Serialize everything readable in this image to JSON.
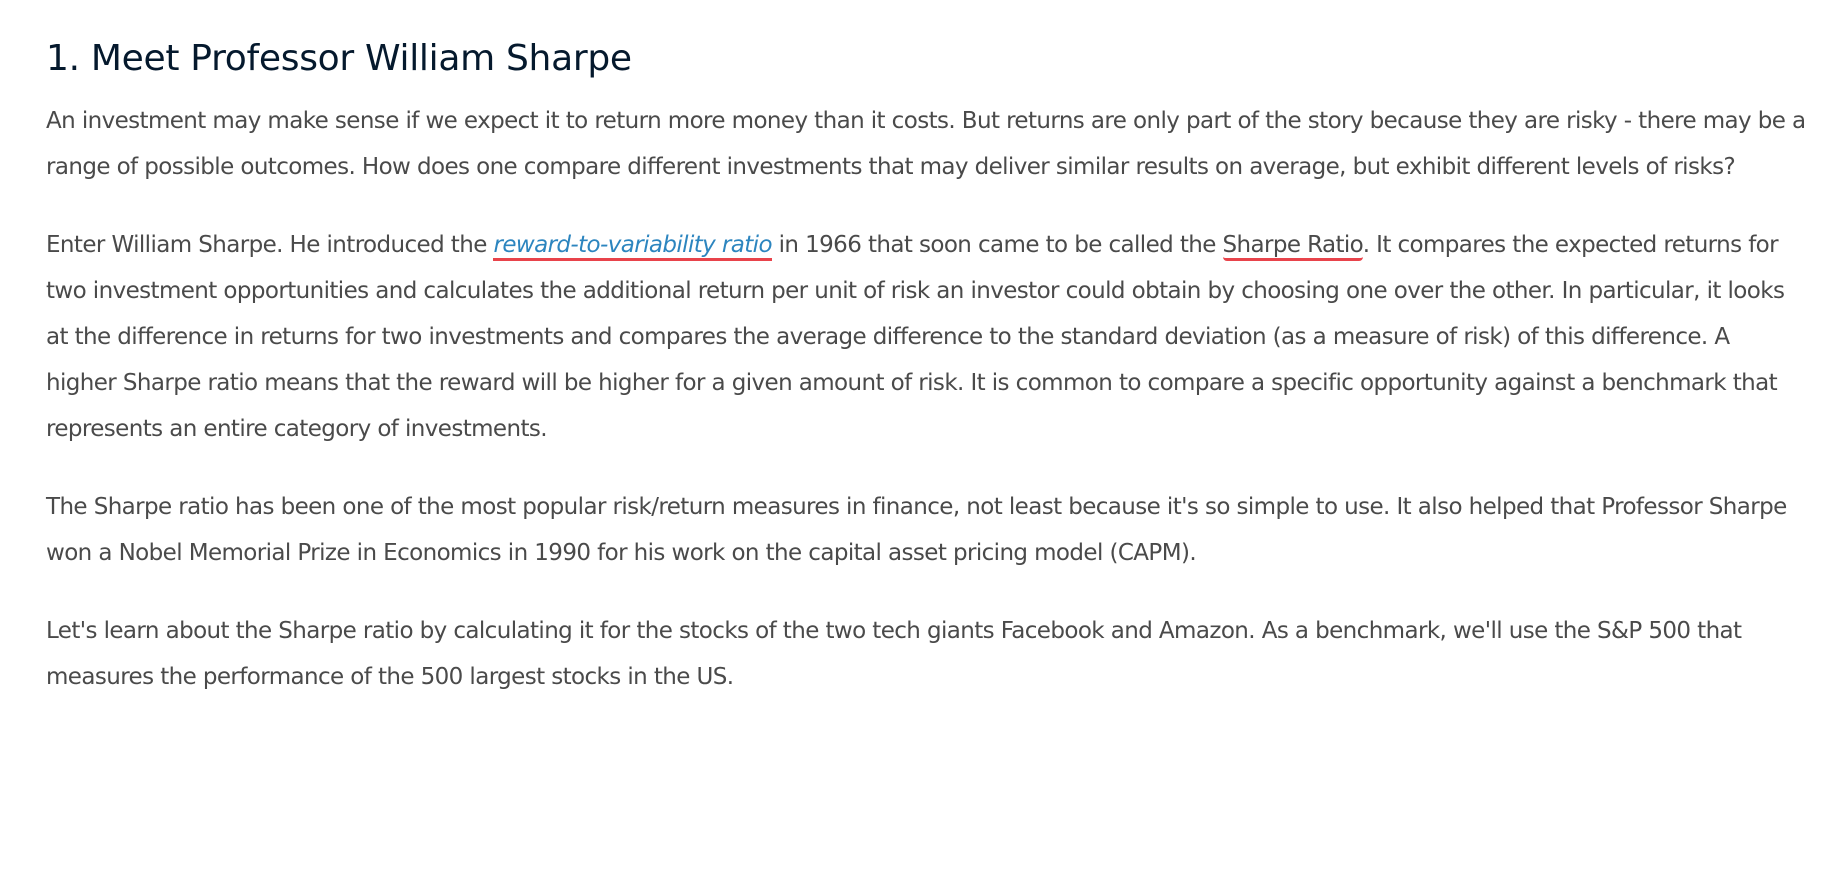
{
  "heading": "1. Meet Professor William Sharpe",
  "paragraphs": {
    "p1": "An investment may make sense if we expect it to return more money than it costs. But returns are only part of the story because they are risky - there may be a range of possible outcomes. How does one compare different investments that may deliver similar results on average, but exhibit different levels of risks?",
    "p2": {
      "before_link": "Enter William Sharpe. He introduced the ",
      "link_text": "reward-to-variability ratio",
      "between": " in 1966 that soon came to be called the ",
      "term": "Sharpe Ratio",
      "after": ". It compares the expected returns for two investment opportunities and calculates the additional return per unit of risk an investor could obtain by choosing one over the other. In particular, it looks at the difference in returns for two investments and compares the average difference to the standard deviation (as a measure of risk) of this difference. A higher Sharpe ratio means that the reward will be higher for a given amount of risk. It is common to compare a specific opportunity against a benchmark that represents an entire category of investments."
    },
    "p3": "The Sharpe ratio has been one of the most popular risk/return measures in finance, not least because it's so simple to use. It also helped that Professor Sharpe won a Nobel Memorial Prize in Economics in 1990 for his work on the capital asset pricing model (CAPM).",
    "p4": "Let's learn about the Sharpe ratio by calculating it for the stocks of the two tech giants Facebook and Amazon. As a benchmark, we'll use the S&P 500 that measures the performance of the 500 largest stocks in the US."
  },
  "colors": {
    "heading": "#05192d",
    "body_text": "#4a4a4a",
    "link": "#2c85bf",
    "underline_accent": "#e8434b",
    "background": "#ffffff"
  }
}
